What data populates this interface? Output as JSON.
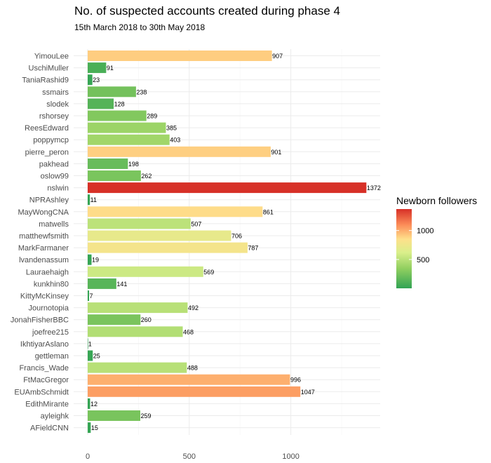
{
  "chart_data": {
    "type": "bar",
    "orientation": "horizontal",
    "title": "No. of suspected accounts created during phase 4",
    "subtitle": "15th March 2018 to 30th May 2018",
    "xlabel": "",
    "ylabel": "",
    "xlim": [
      0,
      1372
    ],
    "x_ticks": [
      0,
      500,
      1000
    ],
    "grid": true,
    "legend": {
      "title": "Newborn followers",
      "placement": "right",
      "ticks": [
        500,
        1000
      ],
      "range": [
        1,
        1372
      ],
      "colors": {
        "low": "#31a354",
        "mid_low": "#91cf60",
        "mid": "#d9ef8b",
        "mid_high": "#fee08b",
        "high_mid": "#fc8d59",
        "high": "#d73027"
      }
    },
    "categories": [
      "YimouLee",
      "UschiMuller",
      "TaniaRashid9",
      "ssmairs",
      "slodek",
      "rshorsey",
      "ReesEdward",
      "poppymcp",
      "pierre_peron",
      "pakhead",
      "oslow99",
      "nslwin",
      "NPRAshley",
      "MayWongCNA",
      "matwells",
      "matthewfsmith",
      "MarkFarmaner",
      "lvandenassum",
      "Lauraehaigh",
      "kunkhin80",
      "KittyMcKinsey",
      "Journotopia",
      "JonahFisherBBC",
      "joefree215",
      "IkhtiyarAslano",
      "gettleman",
      "Francis_Wade",
      "FtMacGregor",
      "EUAmbSchmidt",
      "EdithMirante",
      "ayleighk",
      "AFieldCNN"
    ],
    "values": [
      907,
      91,
      23,
      238,
      128,
      289,
      385,
      403,
      901,
      198,
      262,
      1372,
      11,
      861,
      507,
      706,
      787,
      19,
      569,
      141,
      7,
      492,
      260,
      468,
      1,
      25,
      488,
      996,
      1047,
      12,
      259,
      15
    ],
    "value_labels": [
      "907",
      "91",
      "23",
      "238",
      "128",
      "289",
      "385",
      "403",
      "901",
      "198",
      "262",
      "1372",
      "11",
      "861",
      "507",
      "706",
      "787",
      "19",
      "569",
      "141",
      "7",
      "492",
      "260",
      "468",
      "1",
      "25",
      "488",
      "996",
      "1047",
      "12",
      "259",
      "15"
    ],
    "x_tick_labels": [
      "0",
      "500",
      "1000"
    ],
    "legend_tick_labels": [
      "500",
      "1000"
    ]
  }
}
